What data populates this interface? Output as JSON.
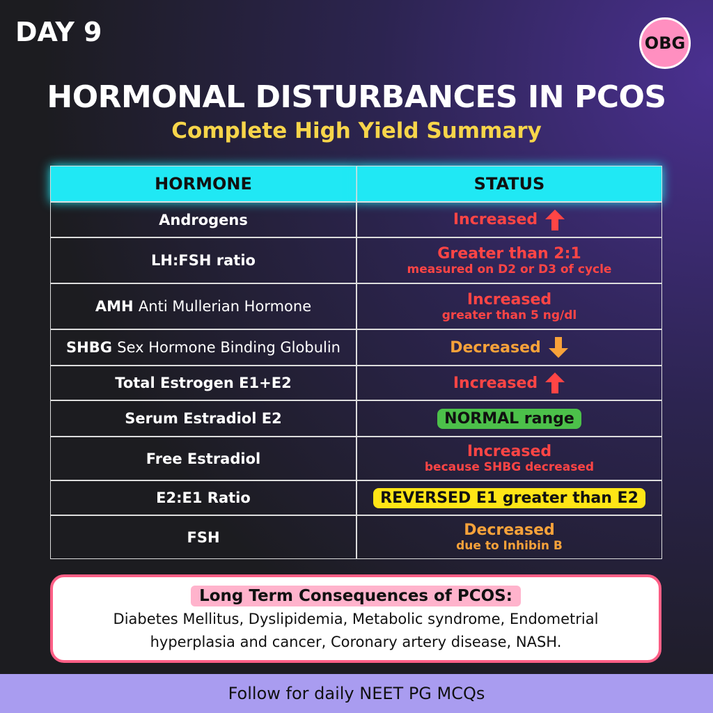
{
  "header": {
    "day": "DAY 9",
    "badge": "OBG",
    "title": "HORMONAL DISTURBANCES IN PCOS",
    "subtitle": "Complete High Yield Summary"
  },
  "table": {
    "headers": [
      "HORMONE",
      "STATUS"
    ],
    "rows": [
      {
        "hormone": "Androgens",
        "status": "Increased",
        "color": "#ff4545",
        "arrow": "up"
      },
      {
        "hormone": "LH:FSH ratio",
        "status": "Greater than 2:1",
        "status_detail": "measured on D2 or D3 of cycle",
        "color": "#ff4545"
      },
      {
        "hormone": "AMH",
        "hormone_detail": "Anti Mullerian Hormone",
        "status": "Increased",
        "status_detail": "greater than 5 ng/dl",
        "color": "#ff4545"
      },
      {
        "hormone": "SHBG",
        "hormone_detail": "Sex Hormone Binding Globulin",
        "status": "Decreased",
        "color": "#f7a23a",
        "arrow": "down"
      },
      {
        "hormone": "Total Estrogen E1+E2",
        "status": "Increased",
        "color": "#ff4545",
        "arrow": "up"
      },
      {
        "hormone": "Serum Estradiol E2",
        "status": "NORMAL range",
        "color": "#111111",
        "badge": "#4cc04a"
      },
      {
        "hormone": "Free Estradiol",
        "status": "Increased",
        "status_detail": "because SHBG decreased",
        "color": "#ff4545"
      },
      {
        "hormone": "E2:E1 Ratio",
        "status": "REVERSED E1 greater than E2",
        "color": "#111111",
        "badge": "#ffe516"
      },
      {
        "hormone": "FSH",
        "status": "Decreased",
        "status_detail": "due to Inhibin B",
        "color": "#f7a23a"
      }
    ]
  },
  "consequences": {
    "title": "Long Term Consequences of PCOS:",
    "text": "Diabetes Mellitus, Dyslipidemia, Metabolic syndrome, Endometrial hyperplasia and cancer, Coronary artery disease, NASH."
  },
  "footer": {
    "text": "Follow for daily NEET PG MCQs"
  }
}
